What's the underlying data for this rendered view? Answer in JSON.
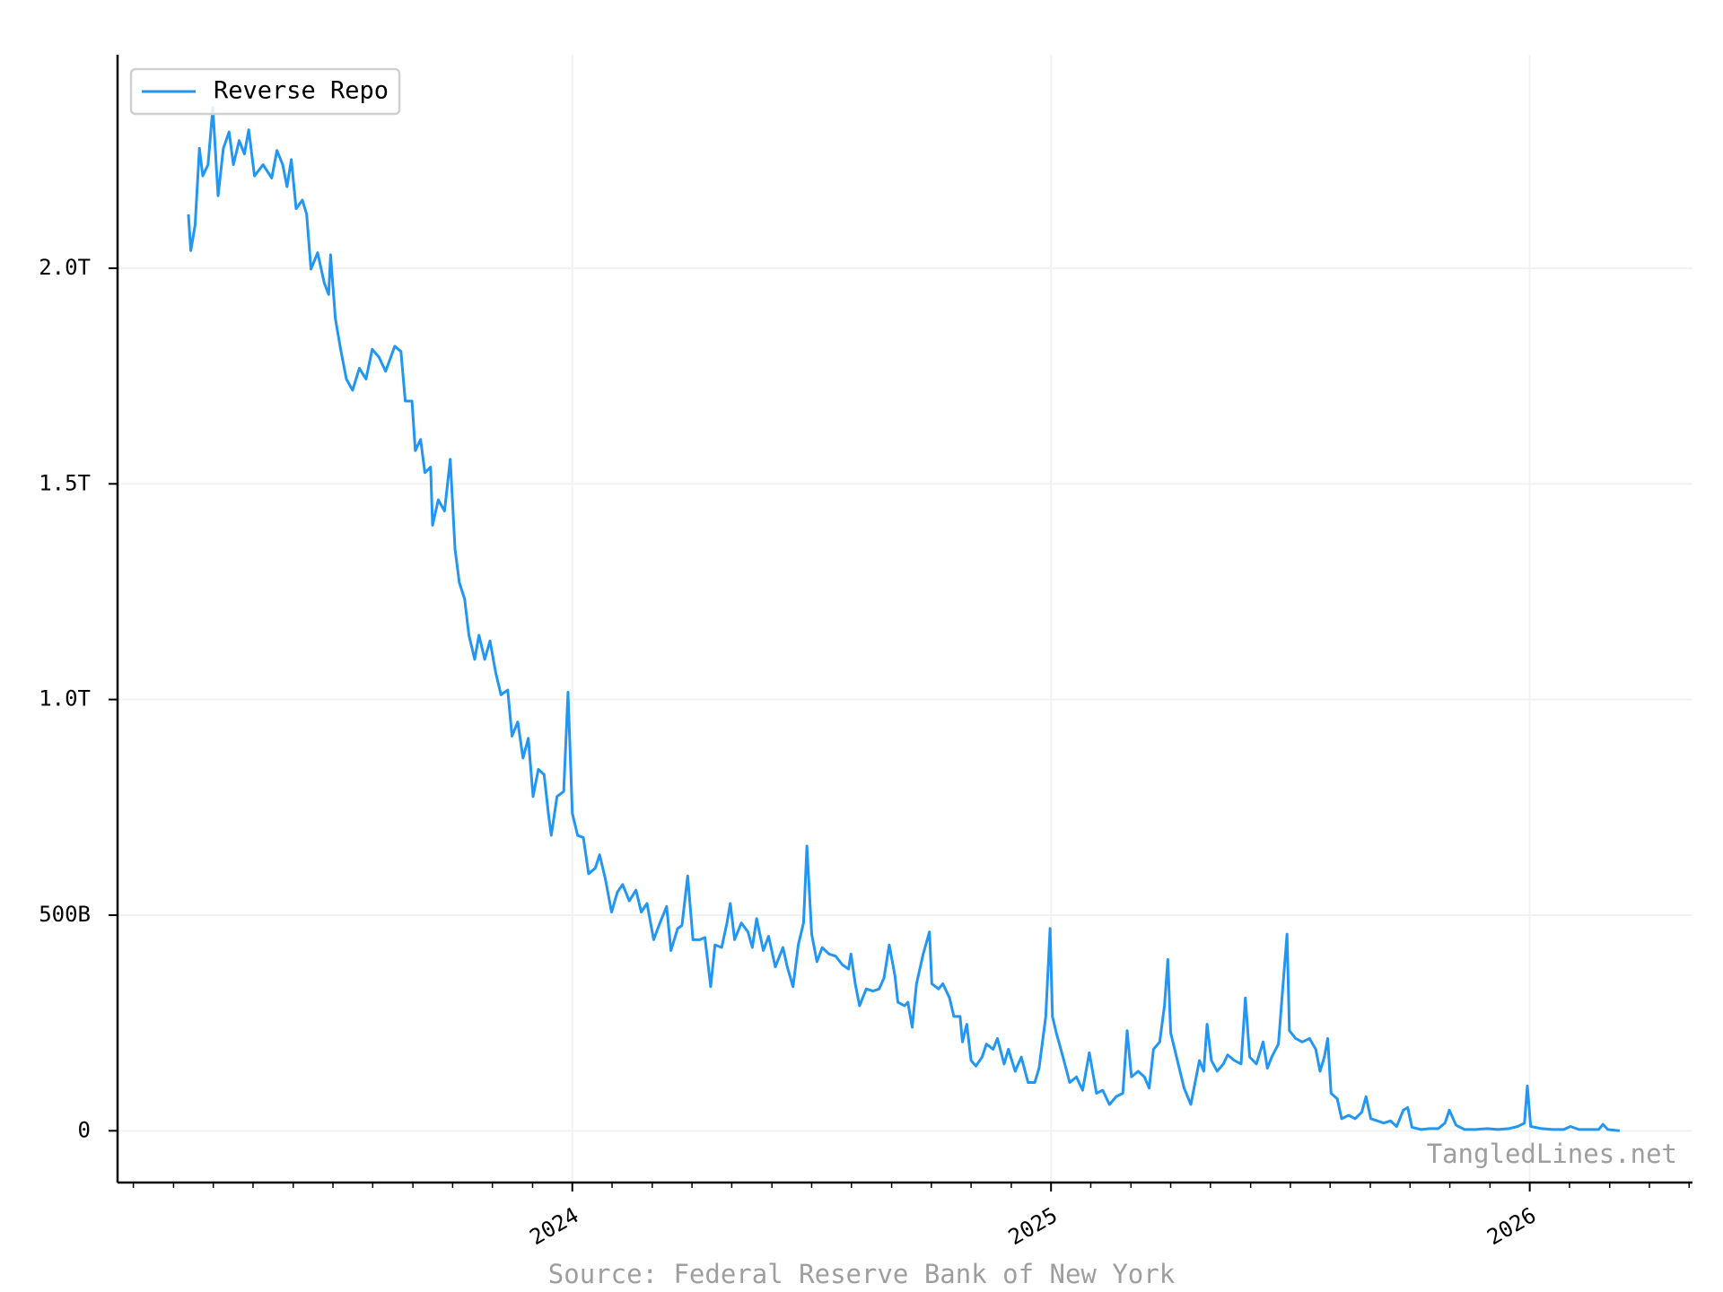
{
  "chart_data": {
    "type": "line",
    "source": "Source: Federal Reserve Bank of New York",
    "watermark": "TangledLines.net",
    "legend": "upper left",
    "grid": true,
    "xlim": [
      2023.05,
      2026.34
    ],
    "xticks": [
      2024,
      2025,
      2026
    ],
    "xminorticks": [
      2023.083,
      2023.167,
      2023.25,
      2023.333,
      2023.417,
      2023.5,
      2023.583,
      2023.667,
      2023.75,
      2023.833,
      2023.917,
      2024.083,
      2024.167,
      2024.25,
      2024.333,
      2024.417,
      2024.5,
      2024.583,
      2024.667,
      2024.75,
      2024.833,
      2024.917,
      2025.083,
      2025.167,
      2025.25,
      2025.333,
      2025.417,
      2025.5,
      2025.583,
      2025.667,
      2025.75,
      2025.833,
      2025.917,
      2026.083,
      2026.167,
      2026.25,
      2026.333
    ],
    "ylim": [
      -120,
      2495
    ],
    "yticks": [
      0,
      {
        "value": 500,
        "label": "500B"
      },
      {
        "value": 1000,
        "label": "1.0T"
      },
      {
        "value": 1500,
        "label": "1.5T"
      },
      {
        "value": 2000,
        "label": "2.0T"
      }
    ],
    "x": [
      2023.198,
      2023.203,
      2023.212,
      2023.221,
      2023.228,
      2023.239,
      2023.249,
      2023.26,
      2023.271,
      2023.283,
      2023.292,
      2023.304,
      2023.315,
      2023.324,
      2023.336,
      2023.354,
      2023.372,
      2023.383,
      2023.395,
      2023.404,
      2023.413,
      2023.423,
      2023.436,
      2023.445,
      2023.454,
      2023.468,
      2023.482,
      2023.491,
      2023.495,
      2023.505,
      2023.516,
      2023.528,
      2023.541,
      2023.555,
      2023.569,
      2023.582,
      2023.596,
      2023.61,
      2023.629,
      2023.642,
      2023.651,
      2023.665,
      2023.672,
      2023.683,
      2023.692,
      2023.704,
      2023.708,
      2023.72,
      2023.733,
      2023.745,
      2023.755,
      2023.764,
      2023.775,
      2023.784,
      2023.796,
      2023.805,
      2023.817,
      2023.828,
      2023.84,
      2023.851,
      2023.865,
      2023.874,
      2023.886,
      2023.897,
      2023.908,
      2023.918,
      2023.929,
      2023.941,
      2023.95,
      2023.956,
      2023.968,
      2023.982,
      2023.991,
      2024.0,
      2024.011,
      2024.023,
      2024.034,
      2024.048,
      2024.057,
      2024.069,
      2024.082,
      2024.094,
      2024.105,
      2024.119,
      2024.133,
      2024.144,
      2024.156,
      2024.17,
      2024.183,
      2024.197,
      2024.206,
      2024.22,
      2024.229,
      2024.241,
      2024.252,
      2024.266,
      2024.277,
      2024.289,
      2024.298,
      2024.312,
      2024.323,
      2024.33,
      2024.339,
      2024.353,
      2024.367,
      2024.376,
      2024.385,
      2024.399,
      2024.41,
      2024.424,
      2024.44,
      2024.449,
      2024.461,
      2024.472,
      2024.483,
      2024.49,
      2024.5,
      2024.511,
      2024.522,
      2024.536,
      2024.55,
      2024.564,
      2024.577,
      2024.582,
      2024.591,
      2024.6,
      2024.614,
      2024.628,
      2024.641,
      2024.651,
      2024.662,
      2024.674,
      2024.68,
      2024.694,
      2024.701,
      2024.71,
      2024.719,
      2024.733,
      2024.746,
      2024.751,
      2024.765,
      2024.774,
      2024.788,
      2024.797,
      2024.81,
      2024.815,
      2024.824,
      2024.833,
      2024.843,
      2024.856,
      2024.865,
      2024.879,
      2024.888,
      2024.902,
      2024.911,
      2024.925,
      2024.938,
      2024.952,
      2024.966,
      2024.975,
      2024.989,
      2024.998,
      2025.003,
      2025.011,
      2025.025,
      2025.039,
      2025.053,
      2025.066,
      2025.08,
      2025.095,
      2025.108,
      2025.122,
      2025.136,
      2025.15,
      2025.159,
      2025.168,
      2025.182,
      2025.195,
      2025.205,
      2025.214,
      2025.227,
      2025.237,
      2025.244,
      2025.25,
      2025.264,
      2025.278,
      2025.292,
      2025.301,
      2025.31,
      2025.319,
      2025.326,
      2025.335,
      2025.347,
      2025.36,
      2025.369,
      2025.383,
      2025.397,
      2025.406,
      2025.415,
      2025.429,
      2025.443,
      2025.452,
      2025.461,
      2025.475,
      2025.484,
      2025.493,
      2025.498,
      2025.511,
      2025.525,
      2025.54,
      2025.553,
      2025.562,
      2025.571,
      2025.578,
      2025.585,
      2025.598,
      2025.607,
      2025.622,
      2025.635,
      2025.649,
      2025.658,
      2025.668,
      2025.682,
      2025.695,
      2025.709,
      2025.722,
      2025.736,
      2025.745,
      2025.754,
      2025.773,
      2025.791,
      2025.809,
      2025.823,
      2025.832,
      2025.846,
      2025.864,
      2025.887,
      2025.911,
      2025.934,
      2025.956,
      2025.975,
      2025.989,
      2025.995,
      2026.002,
      2026.025,
      2026.048,
      2026.071,
      2026.085,
      2026.103,
      2026.126,
      2026.144,
      2026.153,
      2026.163,
      2026.188
    ],
    "series": [
      {
        "name": "Reverse Repo",
        "color": "#2196f3",
        "values": [
          2125,
          2041,
          2100,
          2278,
          2214,
          2240,
          2372,
          2168,
          2278,
          2316,
          2240,
          2296,
          2265,
          2321,
          2214,
          2240,
          2209,
          2273,
          2240,
          2189,
          2252,
          2138,
          2158,
          2125,
          1998,
          2036,
          1965,
          1939,
          2031,
          1883,
          1812,
          1743,
          1717,
          1768,
          1743,
          1812,
          1794,
          1761,
          1819,
          1807,
          1692,
          1692,
          1577,
          1603,
          1526,
          1539,
          1404,
          1463,
          1437,
          1557,
          1348,
          1271,
          1233,
          1149,
          1093,
          1149,
          1093,
          1136,
          1062,
          1011,
          1022,
          915,
          948,
          864,
          910,
          775,
          838,
          826,
          736,
          685,
          775,
          787,
          1017,
          736,
          685,
          680,
          596,
          609,
          640,
          584,
          507,
          553,
          571,
          533,
          558,
          507,
          527,
          443,
          482,
          520,
          418,
          469,
          476,
          591,
          443,
          443,
          448,
          334,
          431,
          425,
          482,
          527,
          443,
          482,
          461,
          425,
          492,
          418,
          451,
          380,
          425,
          380,
          334,
          431,
          482,
          660,
          456,
          392,
          425,
          410,
          405,
          385,
          375,
          410,
          341,
          290,
          329,
          324,
          329,
          354,
          431,
          359,
          298,
          290,
          298,
          240,
          341,
          410,
          461,
          341,
          329,
          341,
          308,
          265,
          265,
          206,
          247,
          163,
          150,
          171,
          201,
          189,
          214,
          155,
          189,
          138,
          171,
          112,
          112,
          145,
          265,
          469,
          265,
          227,
          171,
          112,
          125,
          94,
          181,
          87,
          94,
          61,
          79,
          87,
          232,
          125,
          138,
          125,
          99,
          189,
          206,
          290,
          397,
          227,
          163,
          99,
          61,
          112,
          163,
          138,
          247,
          163,
          138,
          155,
          176,
          163,
          155,
          308,
          171,
          155,
          206,
          145,
          171,
          201,
          329,
          456,
          232,
          214,
          206,
          214,
          189,
          138,
          171,
          214,
          87,
          74,
          28,
          36,
          28,
          43,
          79,
          28,
          23,
          18,
          23,
          10,
          48,
          54,
          8,
          3,
          5,
          5,
          18,
          48,
          13,
          3,
          3,
          5,
          3,
          5,
          10,
          18,
          104,
          10,
          5,
          3,
          3,
          10,
          3,
          3,
          3,
          15,
          3,
          0
        ]
      }
    ]
  }
}
